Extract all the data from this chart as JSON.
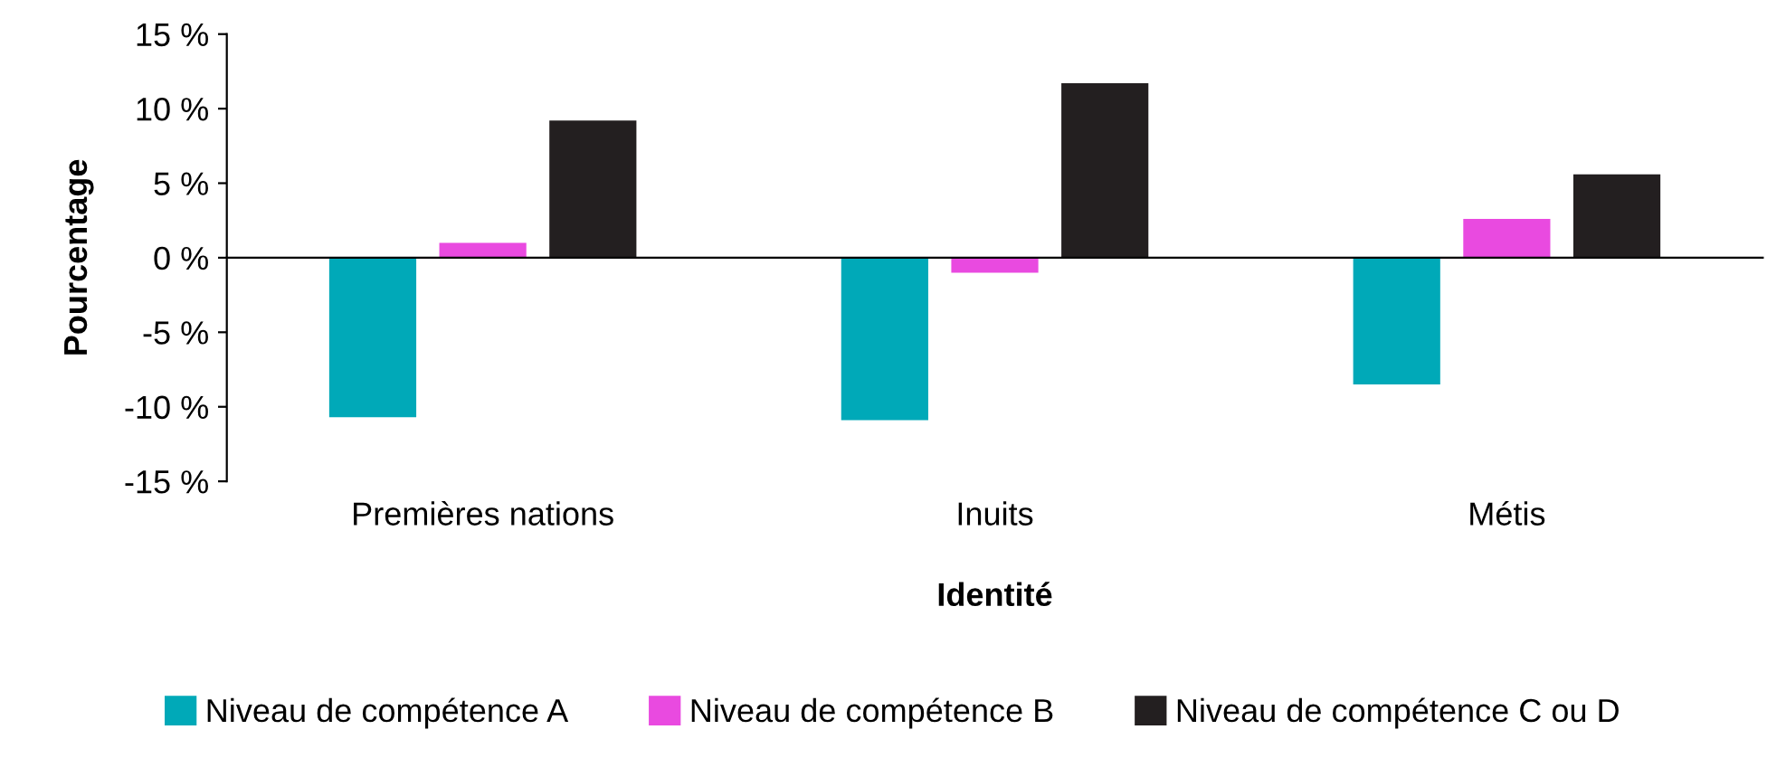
{
  "chart_data": {
    "type": "bar",
    "xlabel": "Identité",
    "ylabel": "Pourcentage",
    "categories": [
      "Premières nations",
      "Inuits",
      "Métis"
    ],
    "series": [
      {
        "name": "Niveau de compétence A",
        "color": "#00a9b8",
        "values": [
          -10.7,
          -10.9,
          -8.5
        ]
      },
      {
        "name": "Niveau de compétence B",
        "color": "#e94ae0",
        "values": [
          1.0,
          -1.0,
          2.6
        ]
      },
      {
        "name": "Niveau de compétence C ou D",
        "color": "#231f20",
        "values": [
          9.2,
          11.7,
          5.6
        ]
      }
    ],
    "ylim": [
      -15,
      15
    ],
    "yticks": [
      {
        "value": -15,
        "label": "-15 %"
      },
      {
        "value": -10,
        "label": "-10 %"
      },
      {
        "value": -5,
        "label": "-5 %"
      },
      {
        "value": 0,
        "label": "0 %"
      },
      {
        "value": 5,
        "label": "5 %"
      },
      {
        "value": 10,
        "label": "10 %"
      },
      {
        "value": 15,
        "label": "15 %"
      }
    ],
    "legend": "bottom"
  }
}
